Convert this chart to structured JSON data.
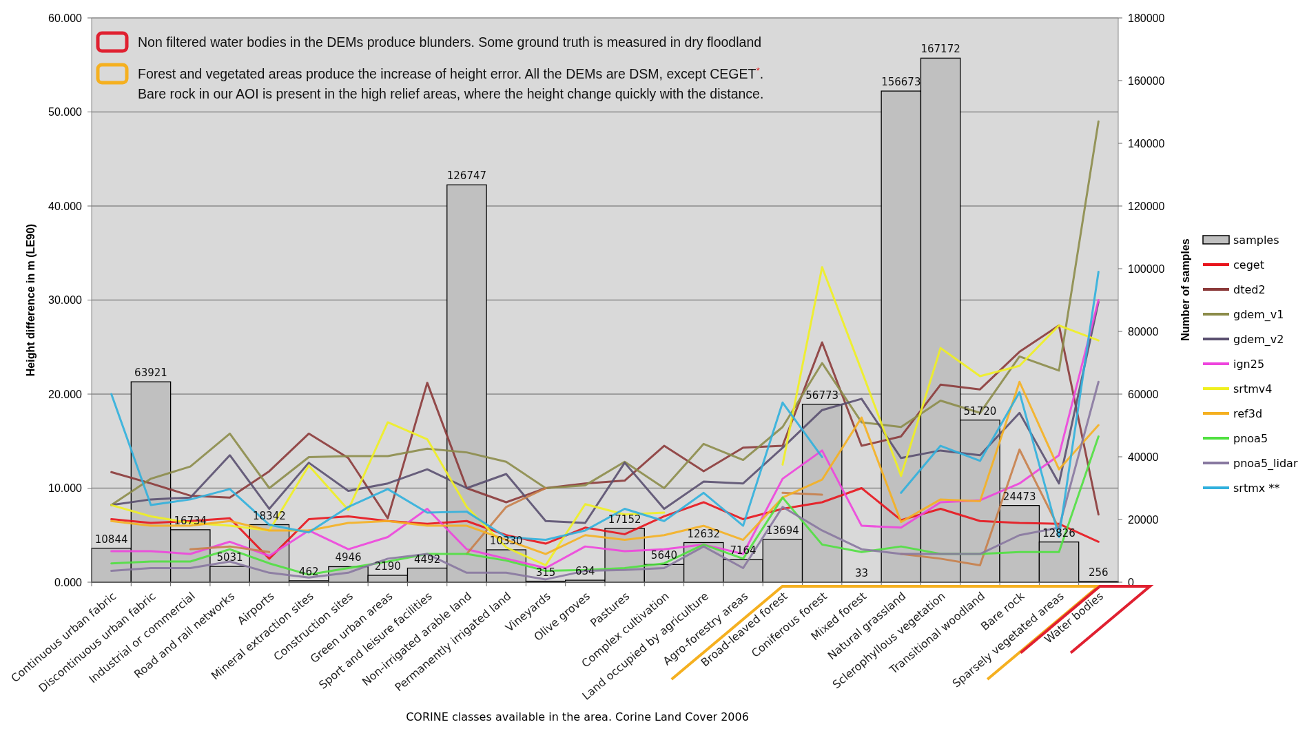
{
  "chart_data": {
    "type": "line",
    "xlabel": "CORINE classes  available  in the area. Corine Land Cover 2006",
    "ylabel": "Height difference in m (LE90)",
    "y2label": "Number of samples",
    "categories": [
      "Continuous urban fabric",
      "Discontinuous urban fabric",
      "Industrial or commercial",
      "Road and rail networks",
      "Airports",
      "Mineral extraction sites",
      "Construction sites",
      "Green urban areas",
      "Sport and leisure facilities",
      "Non-irrigated arable land",
      "Permanently irrigated land",
      "Vineyards",
      "Olive groves",
      "Pastures",
      "Complex cultivation",
      "Land occupied by agriculture",
      "Agro-forestry areas",
      "Broad-leaved forest",
      "Coniferous forest",
      "Mixed forest",
      "Natural grassland",
      "Sclerophyllous vegetation",
      "Transitional woodland",
      "Bare rock",
      "Sparsely vegetated areas",
      "Water bodies"
    ],
    "ylim": [
      0,
      60
    ],
    "yticks": [
      {
        "value": 0,
        "label": "0.000"
      },
      {
        "value": 10,
        "label": "10.000"
      },
      {
        "value": 20,
        "label": "20.000"
      },
      {
        "value": 30,
        "label": "30.000"
      },
      {
        "value": 40,
        "label": "40.000"
      },
      {
        "value": 50,
        "label": "50.000"
      },
      {
        "value": 60,
        "label": "60.000"
      }
    ],
    "y2lim": [
      0,
      180000
    ],
    "y2ticks": [
      0,
      20000,
      40000,
      60000,
      80000,
      100000,
      120000,
      140000,
      160000,
      180000
    ],
    "grid": "y",
    "legend": "right",
    "series": [
      {
        "name": "samples",
        "type": "bar",
        "axis": "y2",
        "color": "#c0c0c0",
        "values": [
          10844,
          63921,
          16734,
          5031,
          18342,
          462,
          4946,
          2190,
          4492,
          126747,
          10330,
          315,
          634,
          17152,
          5640,
          12632,
          7164,
          13694,
          56773,
          33,
          156673,
          167172,
          51720,
          24473,
          12826,
          256
        ],
        "value_labels": [
          "10844",
          "63921",
          "16734",
          "5031",
          "18342",
          "462",
          "4946",
          "2190",
          "4492",
          "126747",
          "10330",
          "315",
          "634",
          "17152",
          "5640",
          "12632",
          "7164",
          "13694",
          "56773",
          "33",
          "156673",
          "167172",
          "51720",
          "24473",
          "12826",
          "256"
        ]
      },
      {
        "name": "ceget",
        "color": "#e8141c",
        "values": [
          6.7,
          6.3,
          6.5,
          6.8,
          2.5,
          6.7,
          7.0,
          6.5,
          6.2,
          6.5,
          5.0,
          4.1,
          5.8,
          5.1,
          7.0,
          8.5,
          6.7,
          7.8,
          8.5,
          10.0,
          6.6,
          7.8,
          6.5,
          6.3,
          6.2,
          4.3
        ]
      },
      {
        "name": "dted2",
        "color": "#8b3a3a",
        "values": [
          11.7,
          10.5,
          9.2,
          9.0,
          11.8,
          15.8,
          13.2,
          6.8,
          21.2,
          10.0,
          8.5,
          10.0,
          10.5,
          10.8,
          14.5,
          11.8,
          14.3,
          14.5,
          25.5,
          14.5,
          15.5,
          21.0,
          20.5,
          24.5,
          27.3,
          7.2
        ]
      },
      {
        "name": "gdem_v1",
        "color": "#8c8c4a",
        "values": [
          8.2,
          11.0,
          12.3,
          15.8,
          10.0,
          13.3,
          13.4,
          13.4,
          14.2,
          13.8,
          12.8,
          10.0,
          10.3,
          12.8,
          10.0,
          14.7,
          13.0,
          16.5,
          23.3,
          17.0,
          16.5,
          19.3,
          18.0,
          24.0,
          22.5,
          49.0
        ]
      },
      {
        "name": "gdem_v2",
        "color": "#5a5070",
        "values": [
          8.2,
          8.8,
          9.0,
          13.5,
          7.8,
          12.7,
          9.7,
          10.5,
          12.0,
          10.0,
          11.5,
          6.5,
          6.3,
          12.7,
          7.8,
          10.7,
          10.5,
          14.3,
          18.3,
          19.5,
          13.2,
          14.0,
          13.5,
          18.0,
          10.5,
          29.8
        ]
      },
      {
        "name": "ign25",
        "color": "#ee44dd",
        "values": [
          3.3,
          3.3,
          3.0,
          4.3,
          2.8,
          5.5,
          3.5,
          4.8,
          7.8,
          3.5,
          2.5,
          1.5,
          3.8,
          3.3,
          3.5,
          4.0,
          3.0,
          11.0,
          14.0,
          6.0,
          5.8,
          8.5,
          8.7,
          10.5,
          13.5,
          30.0
        ]
      },
      {
        "color": "#c8804a",
        "values": [
          null,
          null,
          3.5,
          3.8,
          3.2,
          null,
          null,
          null,
          null,
          3.0,
          8.0,
          10.0,
          null,
          null,
          null,
          null,
          null,
          9.5,
          9.3,
          null,
          3.0,
          2.5,
          1.8,
          14.1,
          5.7,
          null
        ]
      },
      {
        "name": "srtmv4",
        "color": "#f0f020",
        "values": [
          8.2,
          7.0,
          6.3,
          6.0,
          5.5,
          12.4,
          7.7,
          17.0,
          15.2,
          8.0,
          3.7,
          1.8,
          8.3,
          7.2,
          7.4,
          null,
          null,
          12.5,
          33.5,
          22.5,
          11.3,
          24.9,
          21.9,
          23.0,
          27.3,
          25.7
        ]
      },
      {
        "name": "ref3d",
        "color": "#f5b020",
        "values": [
          6.5,
          6.0,
          6.0,
          6.5,
          5.5,
          5.5,
          6.3,
          6.5,
          6.0,
          6.0,
          4.5,
          3.0,
          5.0,
          4.5,
          5.0,
          6.0,
          4.5,
          9.0,
          10.9,
          17.5,
          6.4,
          8.8,
          8.6,
          21.3,
          12.0,
          16.7
        ]
      },
      {
        "name": "pnoa5",
        "color": "#50e040",
        "values": [
          2.0,
          2.2,
          2.2,
          3.5,
          2.0,
          0.8,
          1.5,
          2.2,
          3.0,
          3.0,
          2.3,
          1.2,
          1.3,
          1.5,
          2.0,
          4.0,
          2.5,
          9.0,
          4.0,
          3.2,
          3.8,
          3.0,
          3.0,
          3.2,
          3.2,
          15.5
        ]
      },
      {
        "name": "pnoa5_lidar",
        "color": "#8878a0",
        "values": [
          1.2,
          1.5,
          1.5,
          2.2,
          1.0,
          0.5,
          1.0,
          2.5,
          3.0,
          1.0,
          1.0,
          0.3,
          1.2,
          1.3,
          1.5,
          3.8,
          1.5,
          8.0,
          5.5,
          3.5,
          3.0,
          3.0,
          3.0,
          5.0,
          5.8,
          21.3
        ]
      },
      {
        "name": "srtmx **",
        "color": "#30b0dd",
        "values": [
          20.0,
          8.2,
          8.8,
          9.9,
          6.1,
          5.3,
          8.0,
          9.9,
          7.4,
          7.5,
          4.8,
          4.5,
          5.5,
          7.8,
          6.5,
          9.5,
          6.0,
          19.1,
          13.3,
          null,
          9.5,
          14.5,
          12.9,
          20.2,
          4.8,
          33.0
        ]
      }
    ],
    "annotations": [
      "Non filtered water bodies in the DEMs produce blunders. Some ground truth is measured in dry floodland",
      "Forest and vegetated areas produce the increase of height error. All the DEMs are DSM, except CEGET$^{*}$.\nBare rock in our AOI is present in the high relief areas, where the height change quickly with the distance."
    ]
  }
}
